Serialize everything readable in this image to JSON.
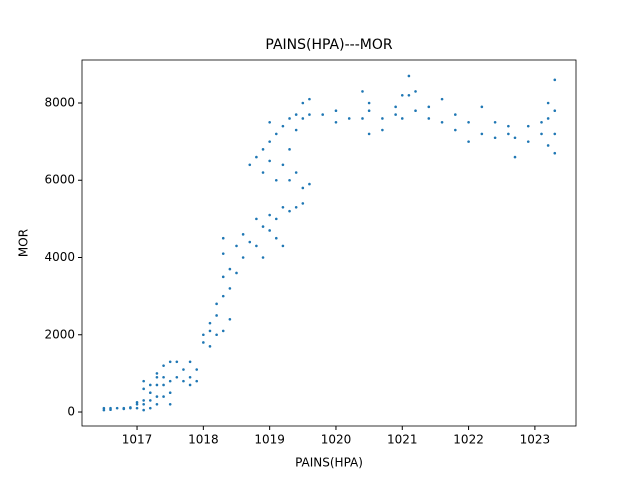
{
  "chart_data": {
    "type": "scatter",
    "title": "PAINS(HPA)---MOR",
    "x_label": "PAINS(HPA)",
    "y_label": "MOR",
    "color": "#1f77b4",
    "x": [
      1016.5,
      1016.5,
      1016.6,
      1016.6,
      1016.7,
      1016.8,
      1016.8,
      1016.9,
      1016.9,
      1017.0,
      1017.0,
      1017.0,
      1017.1,
      1017.1,
      1017.1,
      1017.1,
      1017.1,
      1017.2,
      1017.2,
      1017.2,
      1017.2,
      1017.3,
      1017.3,
      1017.3,
      1017.3,
      1017.3,
      1017.4,
      1017.4,
      1017.4,
      1017.4,
      1017.5,
      1017.5,
      1017.5,
      1017.5,
      1017.6,
      1017.6,
      1017.7,
      1017.7,
      1017.8,
      1017.8,
      1017.8,
      1017.9,
      1017.9,
      1018.0,
      1018.0,
      1018.1,
      1018.1,
      1018.1,
      1018.2,
      1018.2,
      1018.2,
      1018.3,
      1018.3,
      1018.3,
      1018.3,
      1018.3,
      1018.4,
      1018.4,
      1018.4,
      1018.5,
      1018.5,
      1018.6,
      1018.6,
      1018.7,
      1018.7,
      1018.8,
      1018.8,
      1018.8,
      1018.9,
      1018.9,
      1018.9,
      1018.9,
      1019.0,
      1019.0,
      1019.0,
      1019.0,
      1019.0,
      1019.1,
      1019.1,
      1019.1,
      1019.1,
      1019.2,
      1019.2,
      1019.2,
      1019.2,
      1019.3,
      1019.3,
      1019.3,
      1019.3,
      1019.4,
      1019.4,
      1019.4,
      1019.4,
      1019.5,
      1019.5,
      1019.5,
      1019.5,
      1019.6,
      1019.6,
      1019.6,
      1019.8,
      1020.0,
      1020.0,
      1020.2,
      1020.4,
      1020.4,
      1020.5,
      1020.5,
      1020.5,
      1020.7,
      1020.7,
      1020.9,
      1020.9,
      1021.0,
      1021.0,
      1021.1,
      1021.1,
      1021.2,
      1021.2,
      1021.4,
      1021.4,
      1021.6,
      1021.6,
      1021.8,
      1021.8,
      1022.0,
      1022.0,
      1022.2,
      1022.2,
      1022.4,
      1022.4,
      1022.6,
      1022.6,
      1022.7,
      1022.7,
      1022.9,
      1022.9,
      1023.1,
      1023.1,
      1023.2,
      1023.2,
      1023.2,
      1023.3,
      1023.3,
      1023.3,
      1023.3
    ],
    "values": [
      100,
      50,
      100,
      60,
      100,
      100,
      80,
      100,
      120,
      100,
      200,
      250,
      50,
      200,
      300,
      600,
      800,
      100,
      300,
      500,
      700,
      200,
      400,
      700,
      900,
      1000,
      400,
      700,
      900,
      1200,
      200,
      500,
      800,
      1300,
      900,
      1300,
      800,
      1100,
      700,
      900,
      1300,
      800,
      1100,
      1800,
      2000,
      1700,
      2100,
      2300,
      2000,
      2500,
      2800,
      2100,
      3000,
      3500,
      4100,
      4500,
      2400,
      3200,
      3700,
      3600,
      4300,
      4000,
      4600,
      4400,
      6400,
      4300,
      5000,
      6600,
      4000,
      4800,
      6200,
      6800,
      4700,
      5100,
      6500,
      7000,
      7500,
      4500,
      5000,
      6000,
      7200,
      4300,
      5300,
      6400,
      7400,
      5200,
      6000,
      6800,
      7600,
      5300,
      6200,
      7300,
      7700,
      5400,
      5800,
      7600,
      8000,
      5900,
      7700,
      8100,
      7700,
      7500,
      7800,
      7600,
      8300,
      7600,
      7200,
      7800,
      8000,
      7300,
      7600,
      7700,
      7900,
      8200,
      7600,
      8700,
      8200,
      7800,
      8300,
      7600,
      7900,
      7500,
      8100,
      7300,
      7700,
      7500,
      7000,
      7900,
      7200,
      7100,
      7500,
      7200,
      7400,
      6600,
      7100,
      7400,
      7000,
      7200,
      7500,
      6900,
      7600,
      8000,
      6700,
      7200,
      7800,
      8600
    ],
    "xlim": [
      1016.17,
      1023.62
    ],
    "ylim": [
      -362,
      9113
    ],
    "xticks": [
      1017,
      1018,
      1019,
      1020,
      1021,
      1022,
      1023
    ],
    "yticks": [
      0,
      2000,
      4000,
      6000,
      8000
    ]
  }
}
